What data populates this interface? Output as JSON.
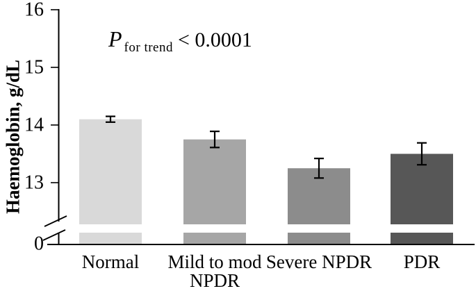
{
  "figure": {
    "ylabel": "Haemoglobin, g/dL",
    "annotation": {
      "p": "P",
      "subscript": "for trend",
      "comparison": "< 0.0001"
    }
  },
  "chart_data": {
    "type": "bar",
    "title": "",
    "ylabel": "Haemoglobin, g/dL",
    "xlabel": "",
    "categories": [
      "Normal",
      "Mild to mod\nNPDR",
      "Severe NPDR",
      "PDR"
    ],
    "values": [
      14.1,
      13.75,
      13.25,
      13.5
    ],
    "errors": [
      0.05,
      0.14,
      0.17,
      0.19
    ],
    "yticks": [
      16,
      15,
      14,
      13
    ],
    "baseline_tick": 0,
    "ylim": [
      13,
      16
    ],
    "axis_break": true,
    "annotation_text": "P for trend < 0.0001",
    "grid": false,
    "legend": false,
    "bar_colors": [
      "#d9d9d9",
      "#a6a6a6",
      "#8c8c8c",
      "#575757"
    ],
    "error_color": "#000000",
    "axis_color": "#000000"
  }
}
